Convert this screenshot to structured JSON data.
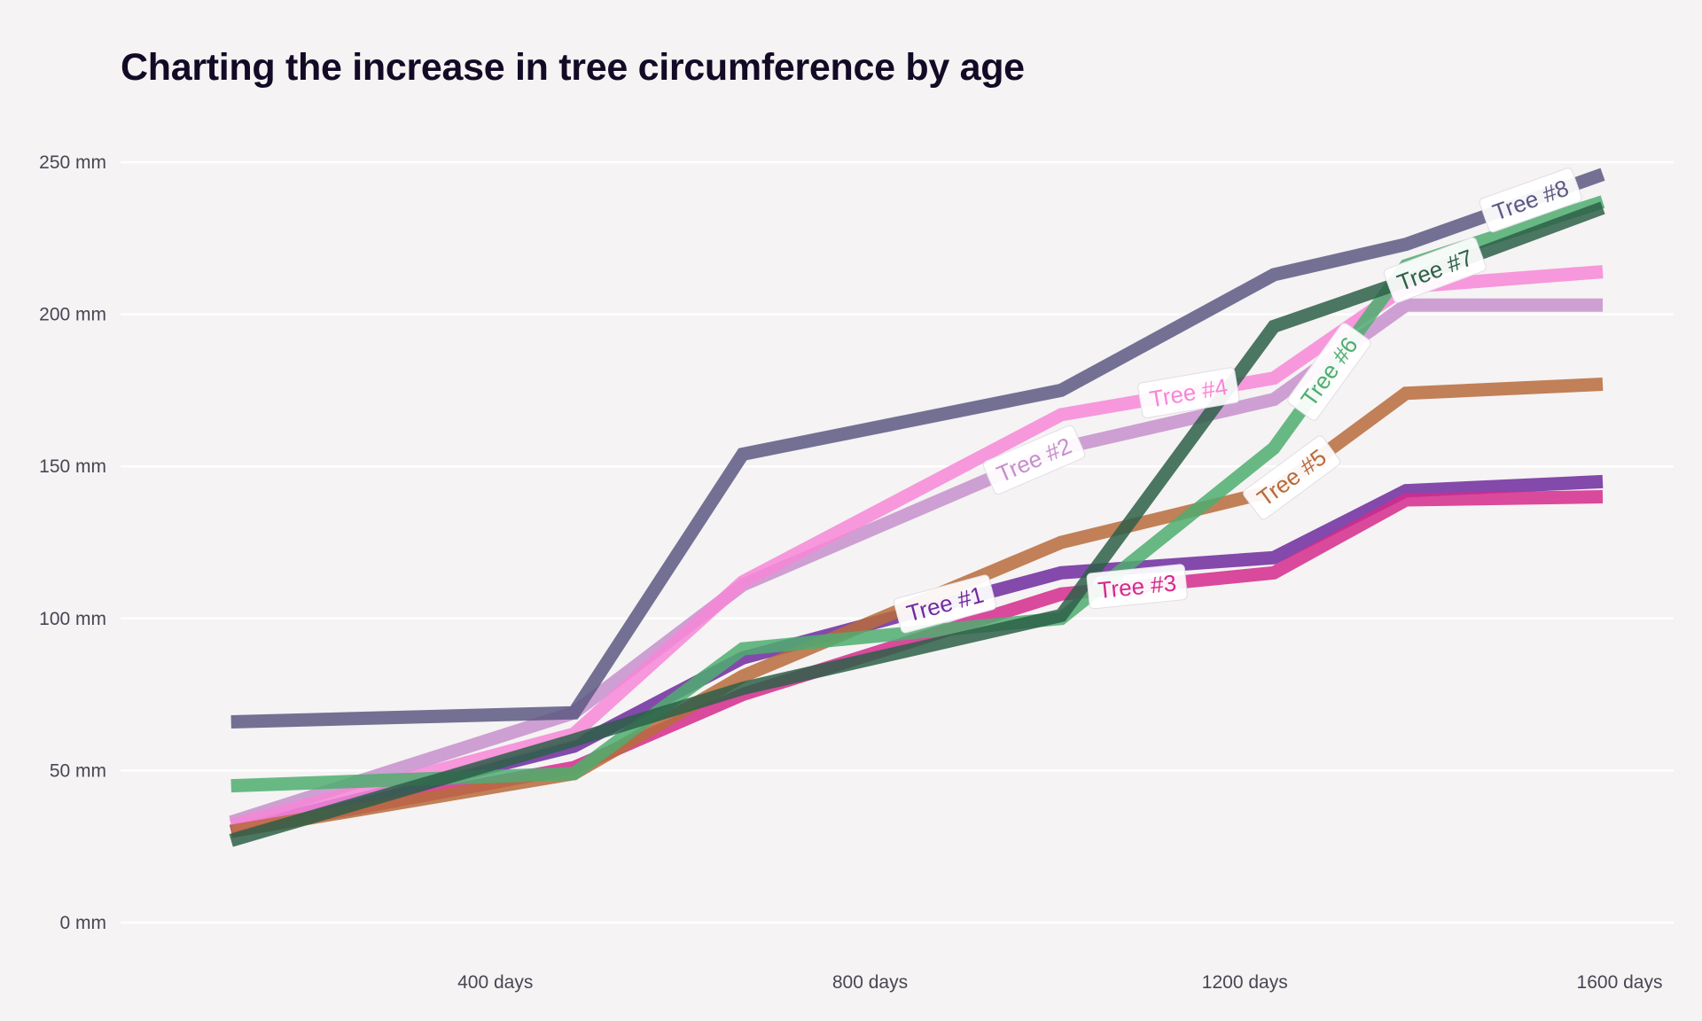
{
  "title": "Charting the increase in tree circumference by age",
  "chart_data": {
    "type": "line",
    "title": "Charting the increase in tree circumference by age",
    "xlabel": "",
    "ylabel": "",
    "x_unit": "days",
    "y_unit": "mm",
    "xlim": [
      0,
      1600
    ],
    "ylim": [
      0,
      250
    ],
    "x_ticks": [
      {
        "value": 400,
        "label": "400 days"
      },
      {
        "value": 800,
        "label": "800 days"
      },
      {
        "value": 1200,
        "label": "1200 days"
      },
      {
        "value": 1600,
        "label": "1600 days"
      }
    ],
    "y_ticks": [
      {
        "value": 0,
        "label": "0 mm"
      },
      {
        "value": 50,
        "label": "50 mm"
      },
      {
        "value": 100,
        "label": "100 mm"
      },
      {
        "value": 150,
        "label": "150 mm"
      },
      {
        "value": 200,
        "label": "200 mm"
      },
      {
        "value": 250,
        "label": "250 mm"
      }
    ],
    "grid": true,
    "legend": "none (inline labels)",
    "x": [
      118,
      484,
      664,
      1004,
      1231,
      1372,
      1582
    ],
    "series": [
      {
        "name": "Tree #1",
        "color": "#6e2a9e",
        "values": [
          30,
          58,
          87,
          115,
          120,
          142,
          145
        ],
        "label_at": 880
      },
      {
        "name": "Tree #2",
        "color": "#c78fcb",
        "values": [
          33,
          69,
          111,
          156,
          172,
          203,
          203
        ],
        "label_at": 975
      },
      {
        "name": "Tree #3",
        "color": "#d42a8c",
        "values": [
          30,
          51,
          75,
          108,
          115,
          139,
          140
        ],
        "label_at": 1085
      },
      {
        "name": "Tree #4",
        "color": "#f786d7",
        "values": [
          32,
          62,
          112,
          167,
          179,
          209,
          214
        ],
        "label_at": 1140
      },
      {
        "name": "Tree #5",
        "color": "#b76b3b",
        "values": [
          30,
          49,
          81,
          125,
          142,
          174,
          177
        ],
        "label_at": 1250
      },
      {
        "name": "Tree #6",
        "color": "#4fad70",
        "values": [
          45,
          49,
          90,
          100,
          156,
          216,
          237
        ],
        "label_at": 1290
      },
      {
        "name": "Tree #7",
        "color": "#2d5f48",
        "values": [
          27,
          60,
          77,
          101,
          196,
          211,
          235
        ],
        "label_at": 1403
      },
      {
        "name": "Tree #8",
        "color": "#5c5883",
        "values": [
          66,
          69,
          154,
          175,
          213,
          223,
          246
        ],
        "label_at": 1505
      }
    ]
  }
}
